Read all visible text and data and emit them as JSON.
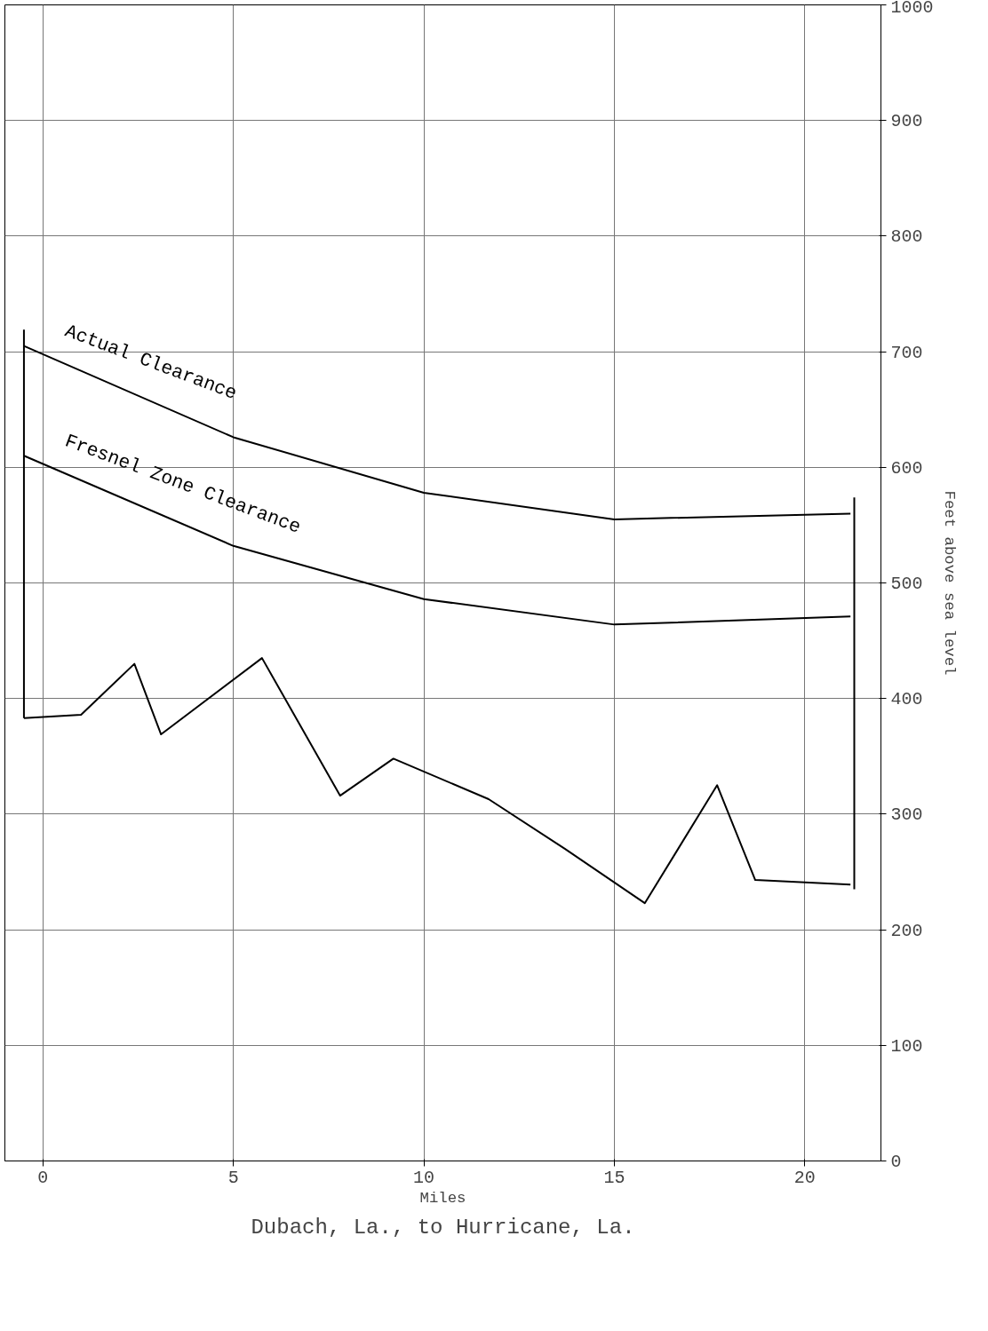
{
  "chart_data": {
    "type": "line",
    "title": "Dubach, La., to Hurricane, La.",
    "xlabel": "Miles",
    "ylabel": "Feet above sea level",
    "xlim": [
      -1,
      22
    ],
    "xticks": [
      0,
      5,
      10,
      15,
      20
    ],
    "ylim": [
      0,
      1000
    ],
    "yticks": [
      0,
      100,
      200,
      300,
      400,
      500,
      600,
      700,
      800,
      900,
      1000
    ],
    "grid": true,
    "marker": "none",
    "line_style": "solid",
    "series": [
      {
        "color": "#000000",
        "x": [
          -0.5,
          1.0,
          2.4,
          3.1,
          5.75,
          7.8,
          9.2,
          11.7,
          13.7,
          15.8,
          17.7,
          18.7,
          21.2
        ],
        "values": [
          383,
          386,
          430,
          369,
          435,
          316,
          348,
          313,
          270,
          223,
          325,
          243,
          239
        ]
      },
      {
        "name": "Actual Clearance",
        "color": "#000000",
        "x": [
          -0.5,
          5,
          10,
          15,
          21.2
        ],
        "values": [
          705,
          626,
          578,
          555,
          560
        ]
      },
      {
        "name": "Fresnel Zone Clearance",
        "color": "#000000",
        "x": [
          -0.5,
          5,
          10,
          15,
          21.2
        ],
        "values": [
          610,
          532,
          486,
          464,
          471
        ]
      },
      {
        "color": "#000000",
        "x": [
          -0.5,
          -0.5
        ],
        "values": [
          383,
          719
        ]
      },
      {
        "color": "#000000",
        "x": [
          21.3,
          21.3
        ],
        "values": [
          235,
          574
        ]
      }
    ]
  }
}
